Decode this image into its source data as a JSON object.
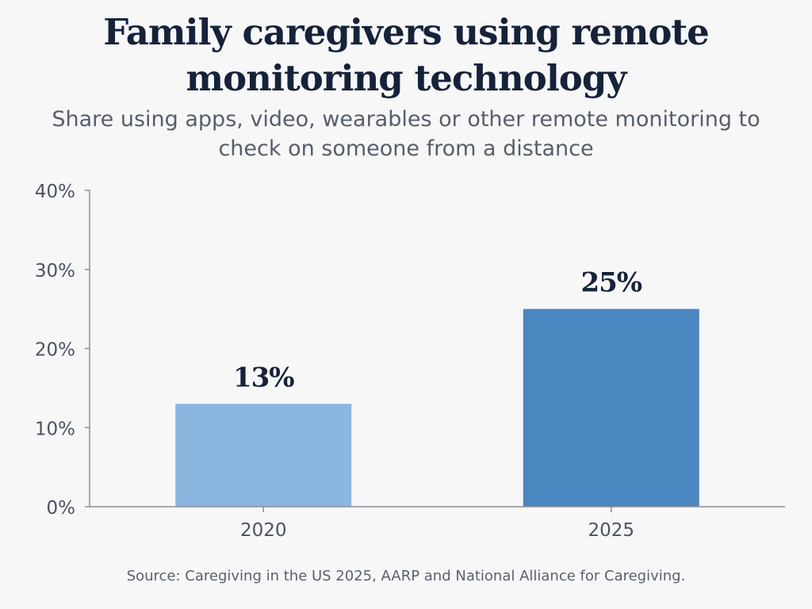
{
  "header": {
    "title": "Family caregivers using remote monitoring technology",
    "subtitle": "Share using apps, video, wearables or other remote monitoring to check on someone from a distance"
  },
  "footer": {
    "source": "Source: Caregiving in the US 2025, AARP and National Alliance for Caregiving."
  },
  "chart_data": {
    "type": "bar",
    "title": "Family caregivers using remote monitoring technology",
    "subtitle": "Share using apps, video, wearables or other remote monitoring to check on someone from a distance",
    "categories": [
      "2020",
      "2025"
    ],
    "values": [
      13,
      25
    ],
    "value_labels": [
      "13%",
      "25%"
    ],
    "bar_colors": [
      "#8ab6df",
      "#4a86bf"
    ],
    "xlabel": "",
    "ylabel": "",
    "ylim": [
      0,
      40
    ],
    "yticks": [
      0,
      10,
      20,
      30,
      40
    ],
    "ytick_labels": [
      "0%",
      "10%",
      "20%",
      "30%",
      "40%"
    ],
    "grid": false,
    "legend": "none"
  }
}
